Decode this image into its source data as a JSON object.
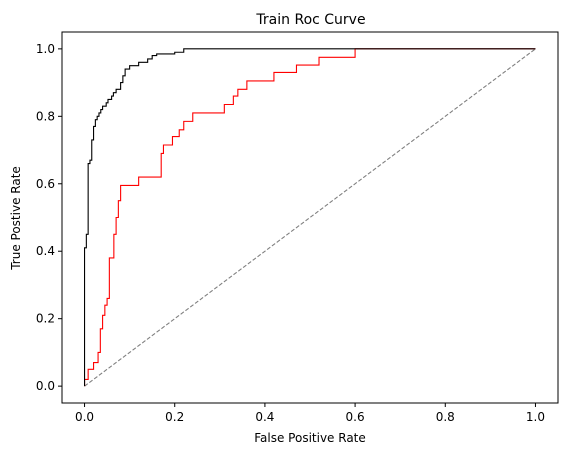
{
  "chart_data": {
    "type": "line",
    "title": "Train Roc Curve",
    "xlabel": "False Positive Rate",
    "ylabel": "True Postive Rate",
    "xlim": [
      -0.05,
      1.05
    ],
    "ylim": [
      -0.05,
      1.05
    ],
    "xticks": [
      0.0,
      0.2,
      0.4,
      0.6,
      0.8,
      1.0
    ],
    "yticks": [
      0.0,
      0.2,
      0.4,
      0.6,
      0.8,
      1.0
    ],
    "xtick_labels": [
      "0.0",
      "0.2",
      "0.4",
      "0.6",
      "0.8",
      "1.0"
    ],
    "ytick_labels": [
      "0.0",
      "0.2",
      "0.4",
      "0.6",
      "0.8",
      "1.0"
    ],
    "grid": false,
    "series": [
      {
        "color": "#000000",
        "style": "solid",
        "step": true,
        "points": [
          [
            0.0,
            0.0
          ],
          [
            0.0,
            0.41
          ],
          [
            0.004,
            0.41
          ],
          [
            0.004,
            0.45
          ],
          [
            0.008,
            0.45
          ],
          [
            0.008,
            0.66
          ],
          [
            0.012,
            0.66
          ],
          [
            0.012,
            0.67
          ],
          [
            0.016,
            0.67
          ],
          [
            0.016,
            0.73
          ],
          [
            0.02,
            0.73
          ],
          [
            0.02,
            0.77
          ],
          [
            0.024,
            0.77
          ],
          [
            0.024,
            0.79
          ],
          [
            0.028,
            0.79
          ],
          [
            0.028,
            0.8
          ],
          [
            0.032,
            0.8
          ],
          [
            0.032,
            0.81
          ],
          [
            0.036,
            0.81
          ],
          [
            0.036,
            0.82
          ],
          [
            0.04,
            0.82
          ],
          [
            0.04,
            0.83
          ],
          [
            0.048,
            0.83
          ],
          [
            0.048,
            0.84
          ],
          [
            0.052,
            0.84
          ],
          [
            0.052,
            0.85
          ],
          [
            0.06,
            0.85
          ],
          [
            0.06,
            0.86
          ],
          [
            0.064,
            0.86
          ],
          [
            0.064,
            0.87
          ],
          [
            0.07,
            0.87
          ],
          [
            0.07,
            0.88
          ],
          [
            0.08,
            0.88
          ],
          [
            0.08,
            0.9
          ],
          [
            0.085,
            0.9
          ],
          [
            0.085,
            0.92
          ],
          [
            0.09,
            0.92
          ],
          [
            0.09,
            0.94
          ],
          [
            0.1,
            0.94
          ],
          [
            0.1,
            0.95
          ],
          [
            0.12,
            0.95
          ],
          [
            0.12,
            0.96
          ],
          [
            0.14,
            0.96
          ],
          [
            0.14,
            0.97
          ],
          [
            0.15,
            0.97
          ],
          [
            0.15,
            0.98
          ],
          [
            0.16,
            0.98
          ],
          [
            0.16,
            0.985
          ],
          [
            0.2,
            0.985
          ],
          [
            0.2,
            0.99
          ],
          [
            0.22,
            0.99
          ],
          [
            0.22,
            1.0
          ],
          [
            1.0,
            1.0
          ]
        ]
      },
      {
        "color": "#ff0000",
        "style": "solid",
        "step": true,
        "points": [
          [
            0.0,
            0.0
          ],
          [
            0.0,
            0.02
          ],
          [
            0.008,
            0.02
          ],
          [
            0.008,
            0.05
          ],
          [
            0.02,
            0.05
          ],
          [
            0.02,
            0.07
          ],
          [
            0.03,
            0.07
          ],
          [
            0.03,
            0.1
          ],
          [
            0.035,
            0.1
          ],
          [
            0.035,
            0.17
          ],
          [
            0.04,
            0.17
          ],
          [
            0.04,
            0.21
          ],
          [
            0.045,
            0.21
          ],
          [
            0.045,
            0.24
          ],
          [
            0.05,
            0.24
          ],
          [
            0.05,
            0.26
          ],
          [
            0.055,
            0.26
          ],
          [
            0.055,
            0.38
          ],
          [
            0.065,
            0.38
          ],
          [
            0.065,
            0.45
          ],
          [
            0.07,
            0.45
          ],
          [
            0.07,
            0.5
          ],
          [
            0.075,
            0.5
          ],
          [
            0.075,
            0.55
          ],
          [
            0.08,
            0.55
          ],
          [
            0.08,
            0.595
          ],
          [
            0.12,
            0.595
          ],
          [
            0.12,
            0.62
          ],
          [
            0.17,
            0.62
          ],
          [
            0.17,
            0.69
          ],
          [
            0.175,
            0.69
          ],
          [
            0.175,
            0.715
          ],
          [
            0.195,
            0.715
          ],
          [
            0.195,
            0.74
          ],
          [
            0.21,
            0.74
          ],
          [
            0.21,
            0.76
          ],
          [
            0.22,
            0.76
          ],
          [
            0.22,
            0.785
          ],
          [
            0.24,
            0.785
          ],
          [
            0.24,
            0.81
          ],
          [
            0.31,
            0.81
          ],
          [
            0.31,
            0.835
          ],
          [
            0.33,
            0.835
          ],
          [
            0.33,
            0.86
          ],
          [
            0.34,
            0.86
          ],
          [
            0.34,
            0.88
          ],
          [
            0.36,
            0.88
          ],
          [
            0.36,
            0.905
          ],
          [
            0.42,
            0.905
          ],
          [
            0.42,
            0.93
          ],
          [
            0.47,
            0.93
          ],
          [
            0.47,
            0.952
          ],
          [
            0.52,
            0.952
          ],
          [
            0.52,
            0.975
          ],
          [
            0.6,
            0.975
          ],
          [
            0.6,
            1.0
          ],
          [
            1.0,
            1.0
          ]
        ]
      },
      {
        "color": "#808080",
        "style": "dashed",
        "step": false,
        "points": [
          [
            0.0,
            0.0
          ],
          [
            1.0,
            1.0
          ]
        ]
      }
    ]
  }
}
